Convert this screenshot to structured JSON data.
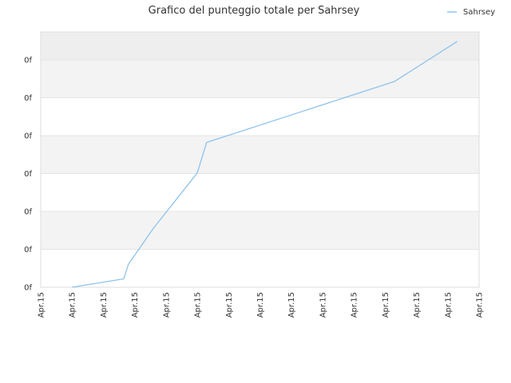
{
  "chart_data": {
    "type": "line",
    "title": "Grafico del punteggio totale per Sahrsey",
    "xlabel": "",
    "ylabel": "",
    "x_tick_labels": [
      "Apr.15",
      "Apr.15",
      "Apr.15",
      "Apr.15",
      "Apr.15",
      "Apr.15",
      "Apr.15",
      "Apr.15",
      "Apr.15",
      "Apr.15",
      "Apr.15",
      "Apr.15",
      "Apr.15",
      "Apr.15",
      "Apr.15"
    ],
    "y_tick_labels": [
      "0f",
      "0f",
      "0f",
      "0f",
      "0f",
      "0f",
      "0f"
    ],
    "xlim": [
      0,
      14
    ],
    "ylim": [
      0,
      6.7
    ],
    "grid": true,
    "alternating_bands": true,
    "legend_position": "top-right",
    "series": [
      {
        "name": "Sahrsey",
        "color": "#8ec2ec",
        "x": [
          1,
          2.65,
          2.8,
          3.6,
          5,
          5.3,
          11.3,
          13.3
        ],
        "y": [
          0,
          0.22,
          0.6,
          1.55,
          3.0,
          3.8,
          5.4,
          6.45
        ]
      }
    ]
  }
}
